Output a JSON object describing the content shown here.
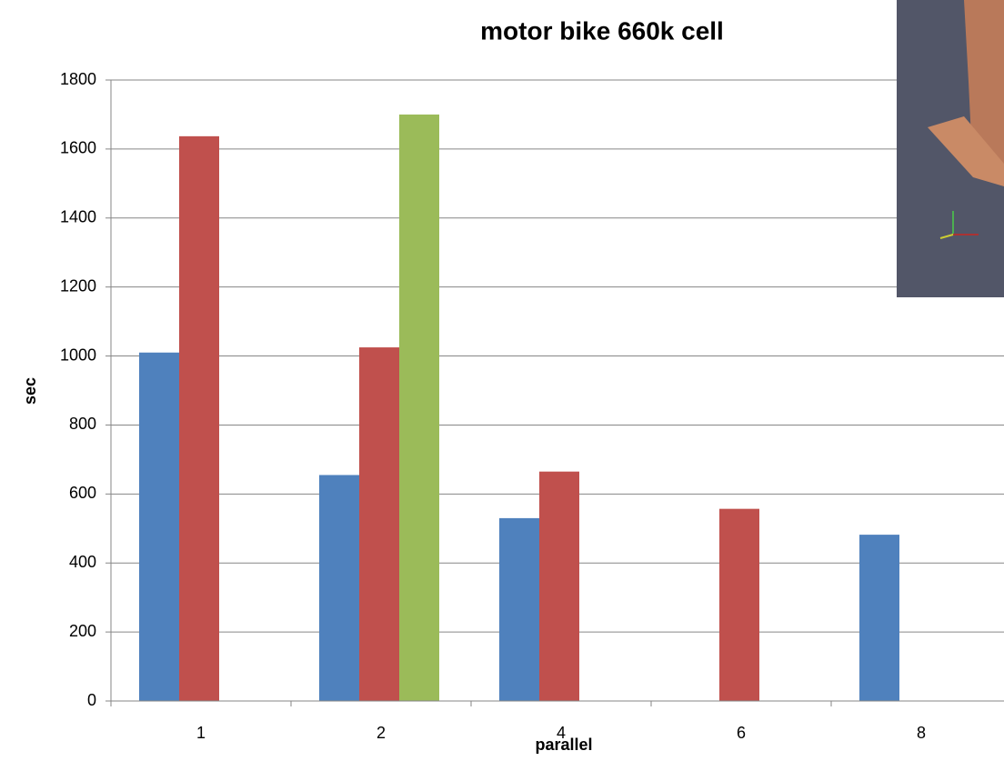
{
  "chart_data": {
    "type": "bar",
    "title": "motor bike 660k cell",
    "x_label": "parallel",
    "y_label": "sec",
    "categories": [
      "1",
      "2",
      "4",
      "6",
      "8"
    ],
    "series": [
      {
        "color": "#4f81bd",
        "values": [
          1010,
          655,
          530,
          null,
          482
        ]
      },
      {
        "color": "#c0504d",
        "values": [
          1637,
          1025,
          665,
          557,
          null
        ]
      },
      {
        "color": "#9bbb59",
        "values": [
          null,
          1700,
          null,
          null,
          null
        ]
      }
    ],
    "ylim": [
      0,
      1800
    ],
    "yticks": [
      0,
      200,
      400,
      600,
      800,
      1000,
      1200,
      1400,
      1600,
      1800
    ],
    "grid": true
  }
}
